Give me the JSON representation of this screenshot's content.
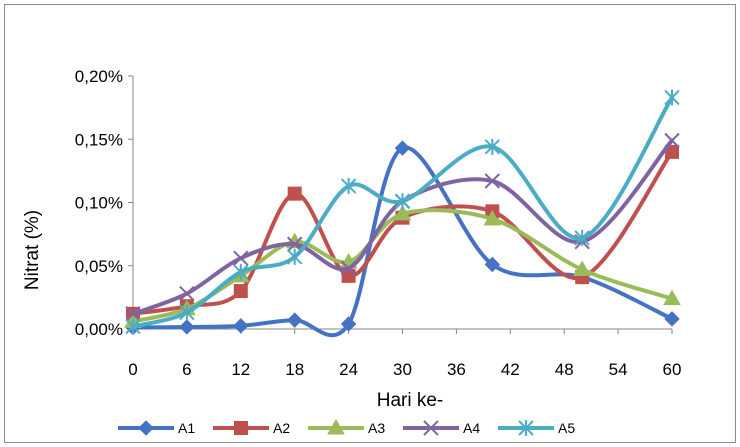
{
  "chart_data": {
    "type": "line",
    "smooth": true,
    "xlabel": "Hari ke-",
    "ylabel": "Nitrat (%)",
    "xlim": [
      0,
      60
    ],
    "ylim": [
      0,
      0.2
    ],
    "x_ticks": [
      "0",
      "6",
      "12",
      "18",
      "24",
      "30",
      "36",
      "42",
      "48",
      "54",
      "60"
    ],
    "y_ticks": [
      "0,00%",
      "0,05%",
      "0,10%",
      "0,15%",
      "0,20%"
    ],
    "grid": false,
    "legend_position": "bottom",
    "series": [
      {
        "name": "A1",
        "color": "#4472C4",
        "marker": "diamond",
        "x": [
          0,
          6,
          12,
          18,
          24,
          30,
          40,
          50,
          60
        ],
        "y": [
          0.0012,
          0.0016,
          0.0025,
          0.007,
          0.004,
          0.143,
          0.051,
          0.041,
          0.008
        ]
      },
      {
        "name": "A2",
        "color": "#C0504D",
        "marker": "square",
        "x": [
          0,
          6,
          12,
          18,
          24,
          30,
          40,
          50,
          60
        ],
        "y": [
          0.012,
          0.018,
          0.03,
          0.107,
          0.042,
          0.088,
          0.093,
          0.041,
          0.14
        ]
      },
      {
        "name": "A3",
        "color": "#9BBB59",
        "marker": "triangle",
        "x": [
          0,
          6,
          12,
          18,
          24,
          30,
          40,
          50,
          60
        ],
        "y": [
          0.006,
          0.016,
          0.042,
          0.069,
          0.053,
          0.091,
          0.087,
          0.047,
          0.024
        ]
      },
      {
        "name": "A4",
        "color": "#8064A2",
        "marker": "x",
        "x": [
          0,
          6,
          12,
          18,
          24,
          30,
          40,
          50,
          60
        ],
        "y": [
          0.012,
          0.028,
          0.056,
          0.067,
          0.048,
          0.101,
          0.117,
          0.069,
          0.149
        ]
      },
      {
        "name": "A5",
        "color": "#4BACC6",
        "marker": "star",
        "x": [
          0,
          6,
          12,
          18,
          24,
          30,
          40,
          50,
          60
        ],
        "y": [
          0.002,
          0.013,
          0.045,
          0.057,
          0.113,
          0.101,
          0.144,
          0.072,
          0.183
        ]
      }
    ]
  }
}
